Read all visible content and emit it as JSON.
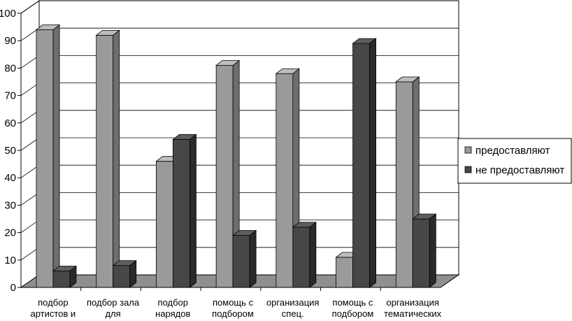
{
  "chart_data": {
    "type": "bar",
    "categories": [
      [
        "подбор",
        "артистов и"
      ],
      [
        "подбор зала",
        "для"
      ],
      [
        "подбор",
        "нарядов"
      ],
      [
        "помощь с",
        "подбором"
      ],
      [
        "организация",
        "спец."
      ],
      [
        "помощь с",
        "подбором"
      ],
      [
        "организация",
        "тематических"
      ]
    ],
    "series": [
      {
        "name": "предоставляют",
        "values": [
          94,
          92,
          46,
          81,
          78,
          11,
          75
        ]
      },
      {
        "name": "не предоставляют",
        "values": [
          6,
          8,
          54,
          19,
          22,
          89,
          25
        ]
      }
    ],
    "y_ticks": [
      "0",
      "10",
      "20",
      "30",
      "40",
      "50",
      "60",
      "70",
      "80",
      "90",
      "100"
    ],
    "ylim": [
      0,
      100
    ],
    "grid": true,
    "legend_position": "right",
    "colors": {
      "series1_front": "#9a9a9a",
      "series1_top": "#bdbdbd",
      "series1_side": "#6e6e6e",
      "series2_front": "#474747",
      "series2_top": "#5e5e5e",
      "series2_side": "#2a2a2a",
      "wall": "#ffffff",
      "floor": "#8f8f8f",
      "grid": "#000000"
    }
  }
}
